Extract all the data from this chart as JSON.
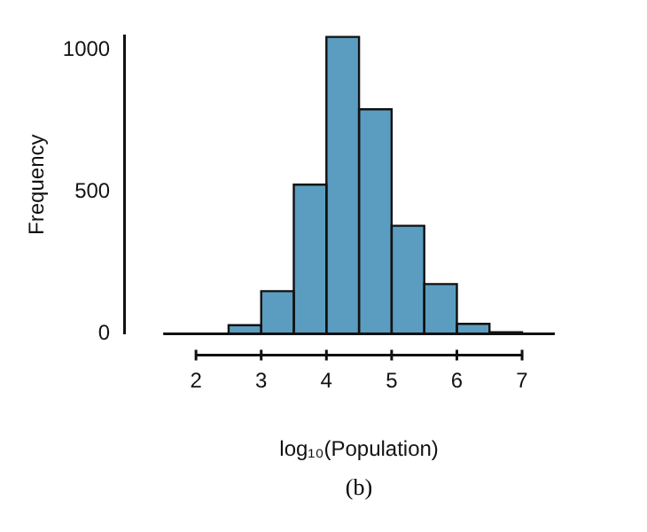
{
  "chart_data": {
    "type": "histogram",
    "xlabel": "log₁₀(Population)",
    "ylabel": "Frequency",
    "bins": [
      1.5,
      2,
      2.5,
      3,
      3.5,
      4,
      4.5,
      5,
      5.5,
      6,
      6.5,
      7,
      7.5
    ],
    "values": [
      0,
      0,
      30,
      150,
      525,
      1045,
      790,
      380,
      175,
      35,
      5,
      0
    ],
    "color": "#5b9dc0",
    "xlim": [
      1.5,
      7.5
    ],
    "xticks": [
      2,
      3,
      4,
      5,
      6,
      7
    ],
    "ylim": [
      0,
      1050
    ],
    "yticks": [
      0,
      500,
      1000
    ],
    "grid": false,
    "legend": false,
    "annotations": [
      "(b)"
    ]
  }
}
